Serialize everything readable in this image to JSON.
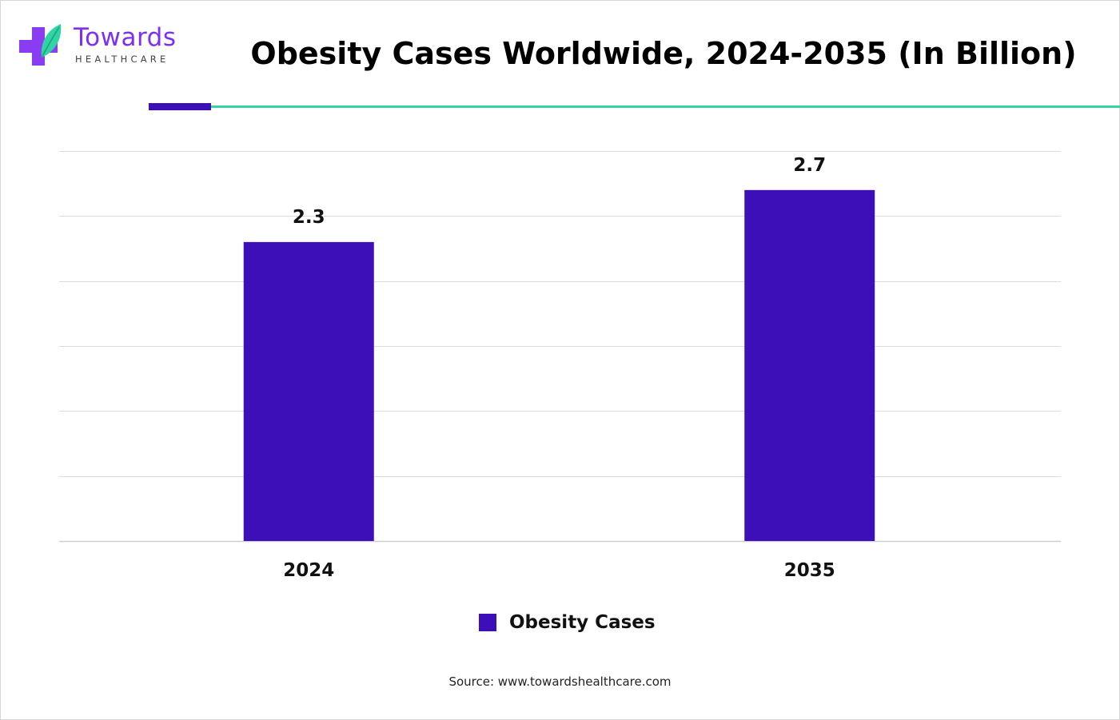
{
  "brand": {
    "name": "Towards",
    "sub": "HEALTHCARE",
    "colors": {
      "primary": "#7b2ff7",
      "accent": "#3ad1a0",
      "bar": "#3d0fb8"
    }
  },
  "chart_data": {
    "type": "bar",
    "title": "Obesity Cases Worldwide, 2024-2035 (In Billion)",
    "categories": [
      "2024",
      "2035"
    ],
    "series": [
      {
        "name": "Obesity Cases",
        "values": [
          2.3,
          2.7
        ],
        "color": "#3d0fb8"
      }
    ],
    "data_labels": [
      "2.3",
      "2.7"
    ],
    "xlabel": "",
    "ylabel": "",
    "ylim": [
      0,
      3
    ],
    "grid": true,
    "legend": "bottom-center"
  },
  "source": "Source: www.towardshealthcare.com"
}
